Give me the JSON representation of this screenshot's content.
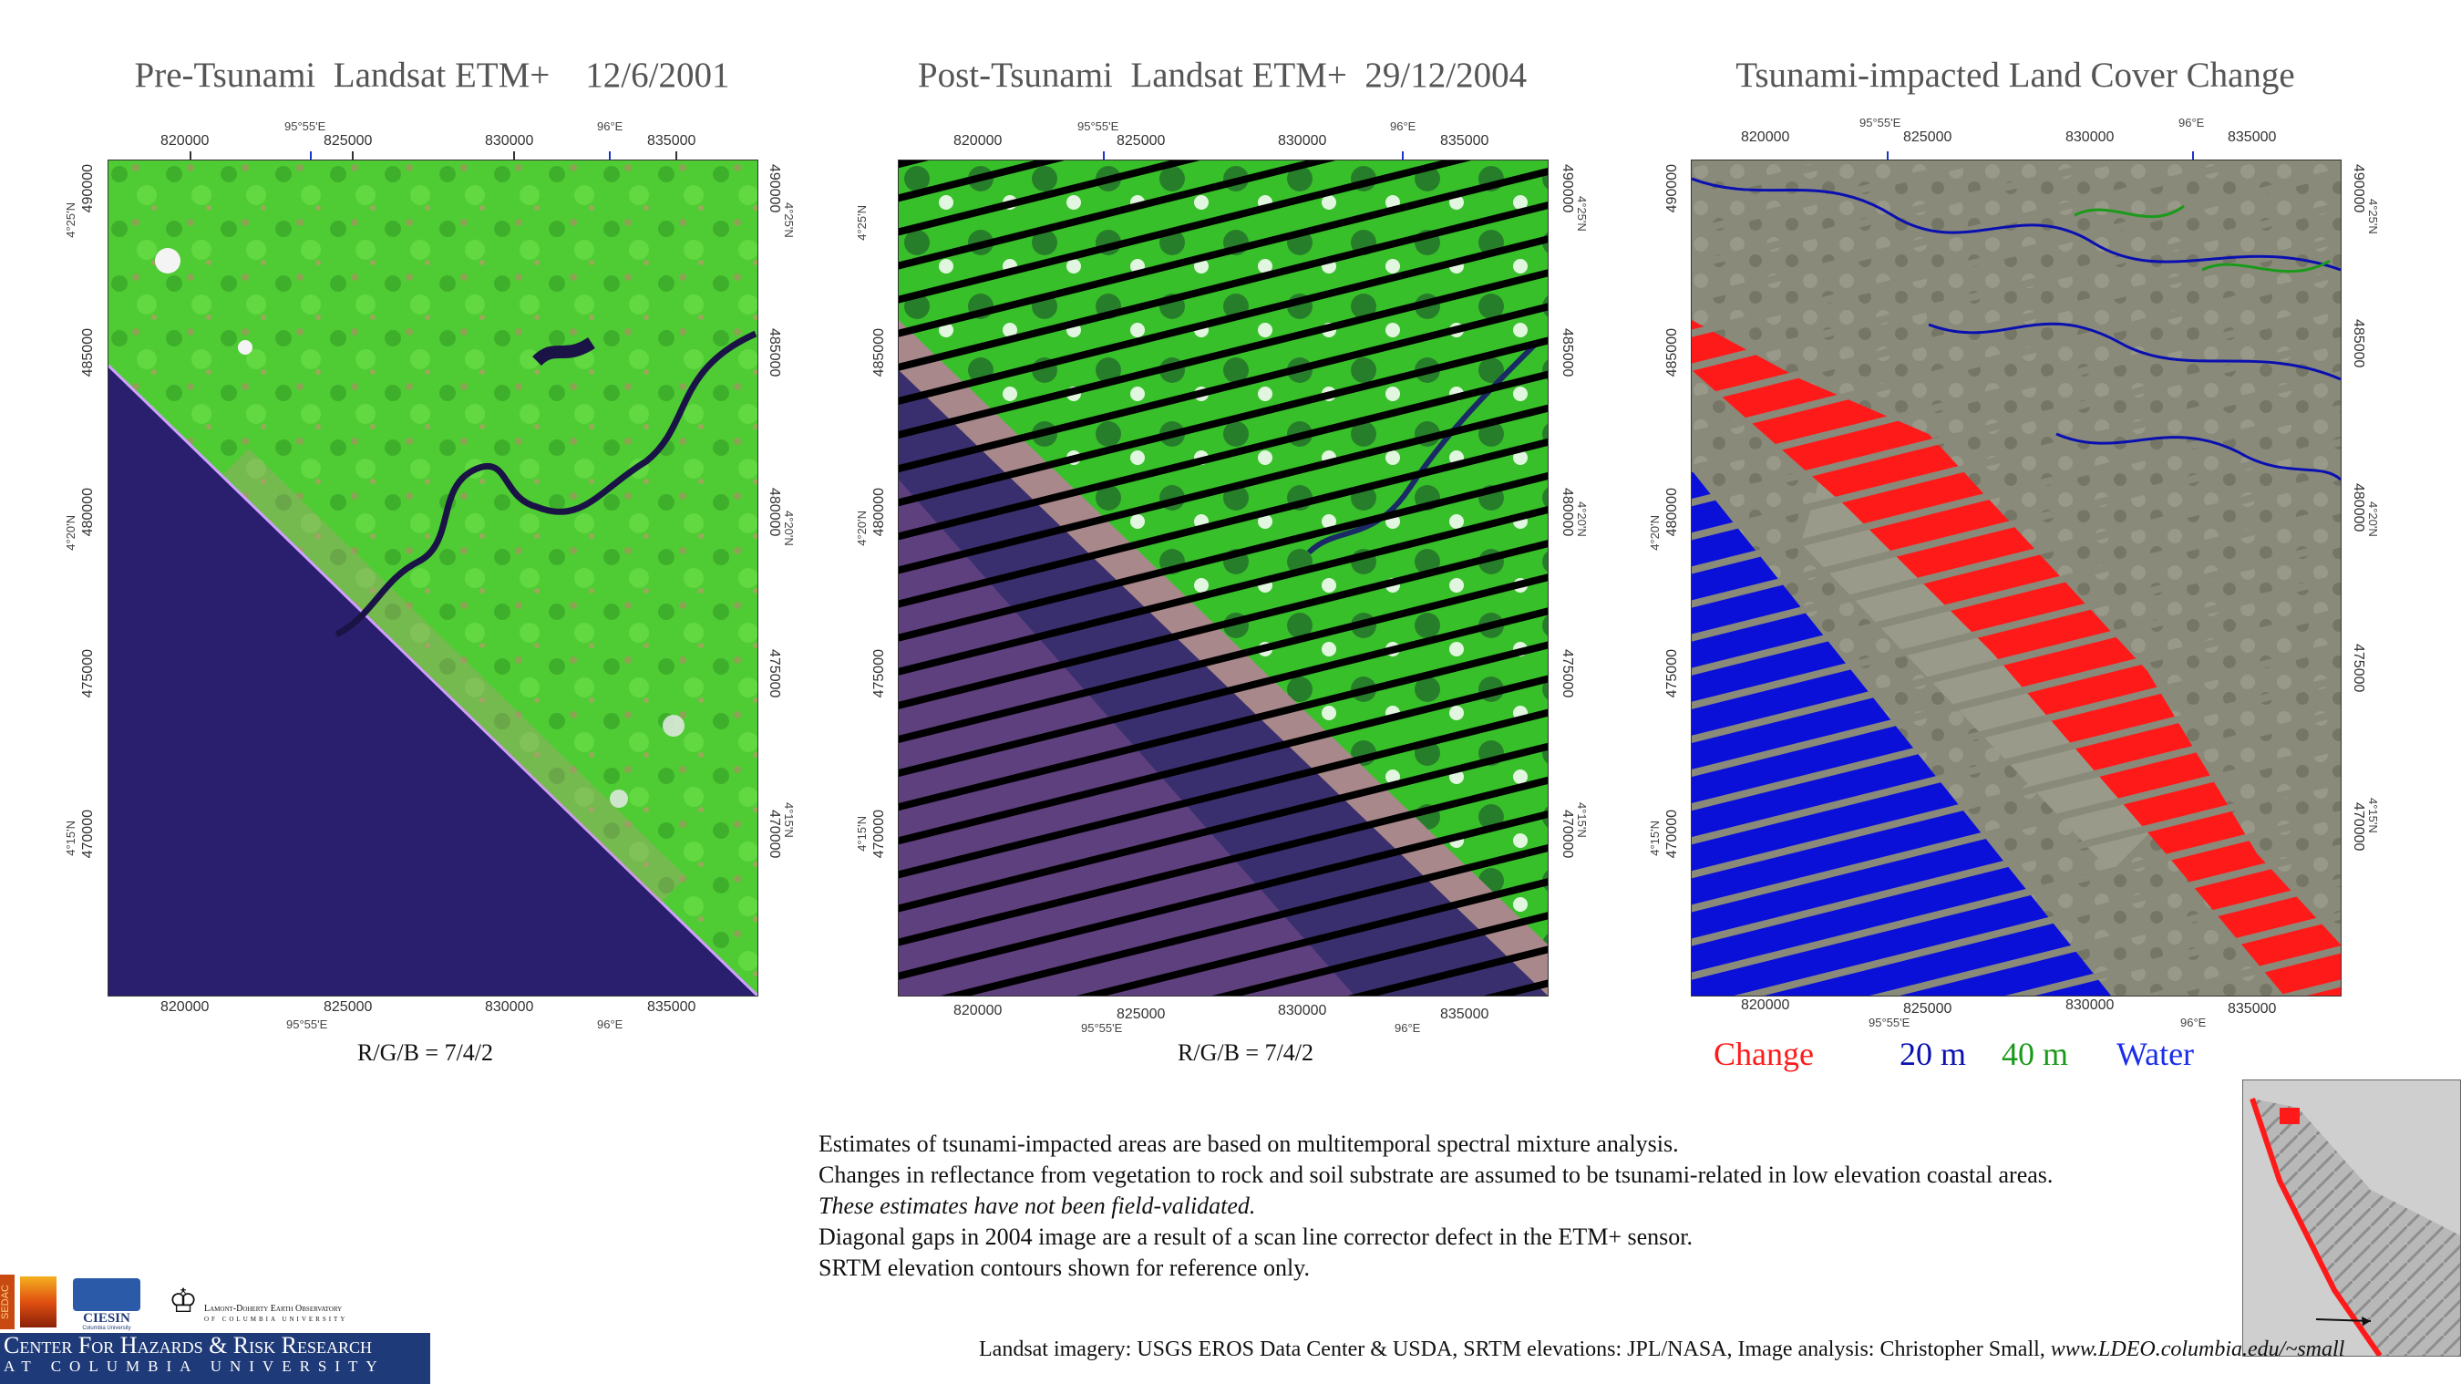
{
  "panels": [
    {
      "title": "Pre-Tsunami  Landsat ETM+    12/6/2001",
      "caption": "R/G/B = 7/4/2"
    },
    {
      "title": "Post-Tsunami  Landsat ETM+  29/12/2004",
      "caption": "R/G/B = 7/4/2"
    },
    {
      "title": "Tsunami-impacted Land Cover Change"
    }
  ],
  "grid": {
    "easting_labels": [
      "820000",
      "825000",
      "830000",
      "835000"
    ],
    "northing_labels": [
      "490000",
      "485000",
      "480000",
      "475000",
      "470000"
    ],
    "longitude_labels": [
      "95°55'E",
      "96°E"
    ],
    "latitude_labels": [
      "4°25'N",
      "4°20'N",
      "4°15'N"
    ]
  },
  "legend": [
    {
      "label": "Change",
      "color": "#ff1a1a"
    },
    {
      "label": "20 m",
      "color": "#0a10b0"
    },
    {
      "label": "40 m",
      "color": "#1a9a1a"
    },
    {
      "label": "Water",
      "color": "#1a2ee8"
    }
  ],
  "notes": [
    {
      "text": "Estimates of tsunami-impacted areas are based on multitemporal spectral mixture analysis.",
      "italic": false
    },
    {
      "text": "Changes in reflectance from vegetation to rock and soil substrate are assumed to be tsunami-related in low elevation coastal areas.",
      "italic": false
    },
    {
      "text": "These estimates have not been field-validated.",
      "italic": true
    },
    {
      "text": "Diagonal gaps in 2004 image are a result of a scan line corrector defect in the ETM+ sensor.",
      "italic": false
    },
    {
      "text": "SRTM elevation contours shown for reference only.",
      "italic": false
    }
  ],
  "credits": {
    "text": "Landsat imagery: USGS EROS Data Center & USDA,  SRTM elevations: JPL/NASA,   Image analysis:  Christopher Small,",
    "url": "www.LDEO.columbia.edu/~small"
  },
  "logos": {
    "sedac": "SEDAC",
    "ciesin": "CIESIN",
    "ciesin_sub": "Columbia University",
    "lamont_line1": "Lamont-Doherty Earth Observatory",
    "lamont_line2": "of Columbia University",
    "chr_line1": "Center For Hazards & Risk Research",
    "chr_line2": "at Columbia University"
  },
  "colors": {
    "ocean_pre": "#2a1f6e",
    "vegetation": "#3fcf2f",
    "ocean_post": "#3a2f6e",
    "change": "#ff1a1a",
    "water_20m_blue": "#0a10d8",
    "banner": "#1f3a78"
  }
}
